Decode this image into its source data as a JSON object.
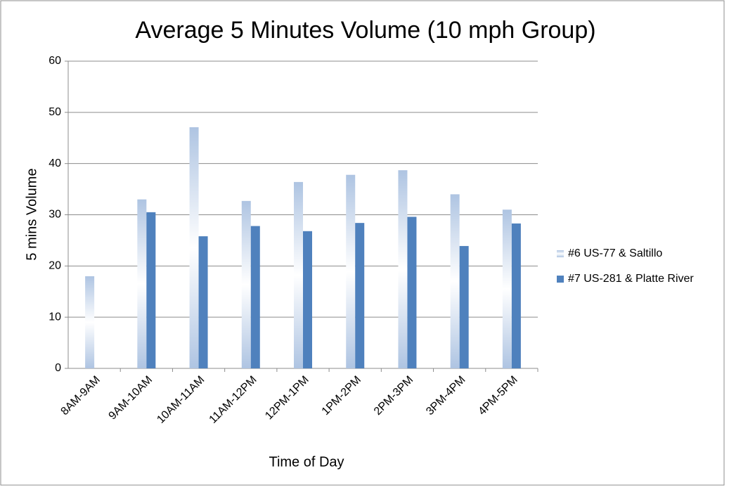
{
  "chart_data": {
    "type": "bar",
    "title": "Average 5 Minutes Volume (10 mph Group)",
    "x_label": "Time of Day",
    "y_label": "5 mins Volume",
    "categories": [
      "8AM-9AM",
      "9AM-10AM",
      "10AM-11AM",
      "11AM-12PM",
      "12PM-1PM",
      "1PM-2PM",
      "2PM-3PM",
      "3PM-4PM",
      "4PM-5PM"
    ],
    "series": [
      {
        "name": "#6 US-77 & Saltillo",
        "color": "#aec4e2",
        "values": [
          18,
          33,
          47.1,
          32.7,
          36.4,
          37.8,
          38.7,
          34,
          31
        ]
      },
      {
        "name": "#7 US-281 & Platte River",
        "color": "#4f81bd",
        "values": [
          null,
          30.5,
          25.8,
          27.8,
          26.8,
          28.4,
          29.6,
          23.9,
          28.3
        ]
      }
    ],
    "ylim": [
      0,
      60
    ],
    "yticks": [
      0,
      10,
      20,
      30,
      40,
      50,
      60
    ],
    "grid": true,
    "legend": "right"
  }
}
